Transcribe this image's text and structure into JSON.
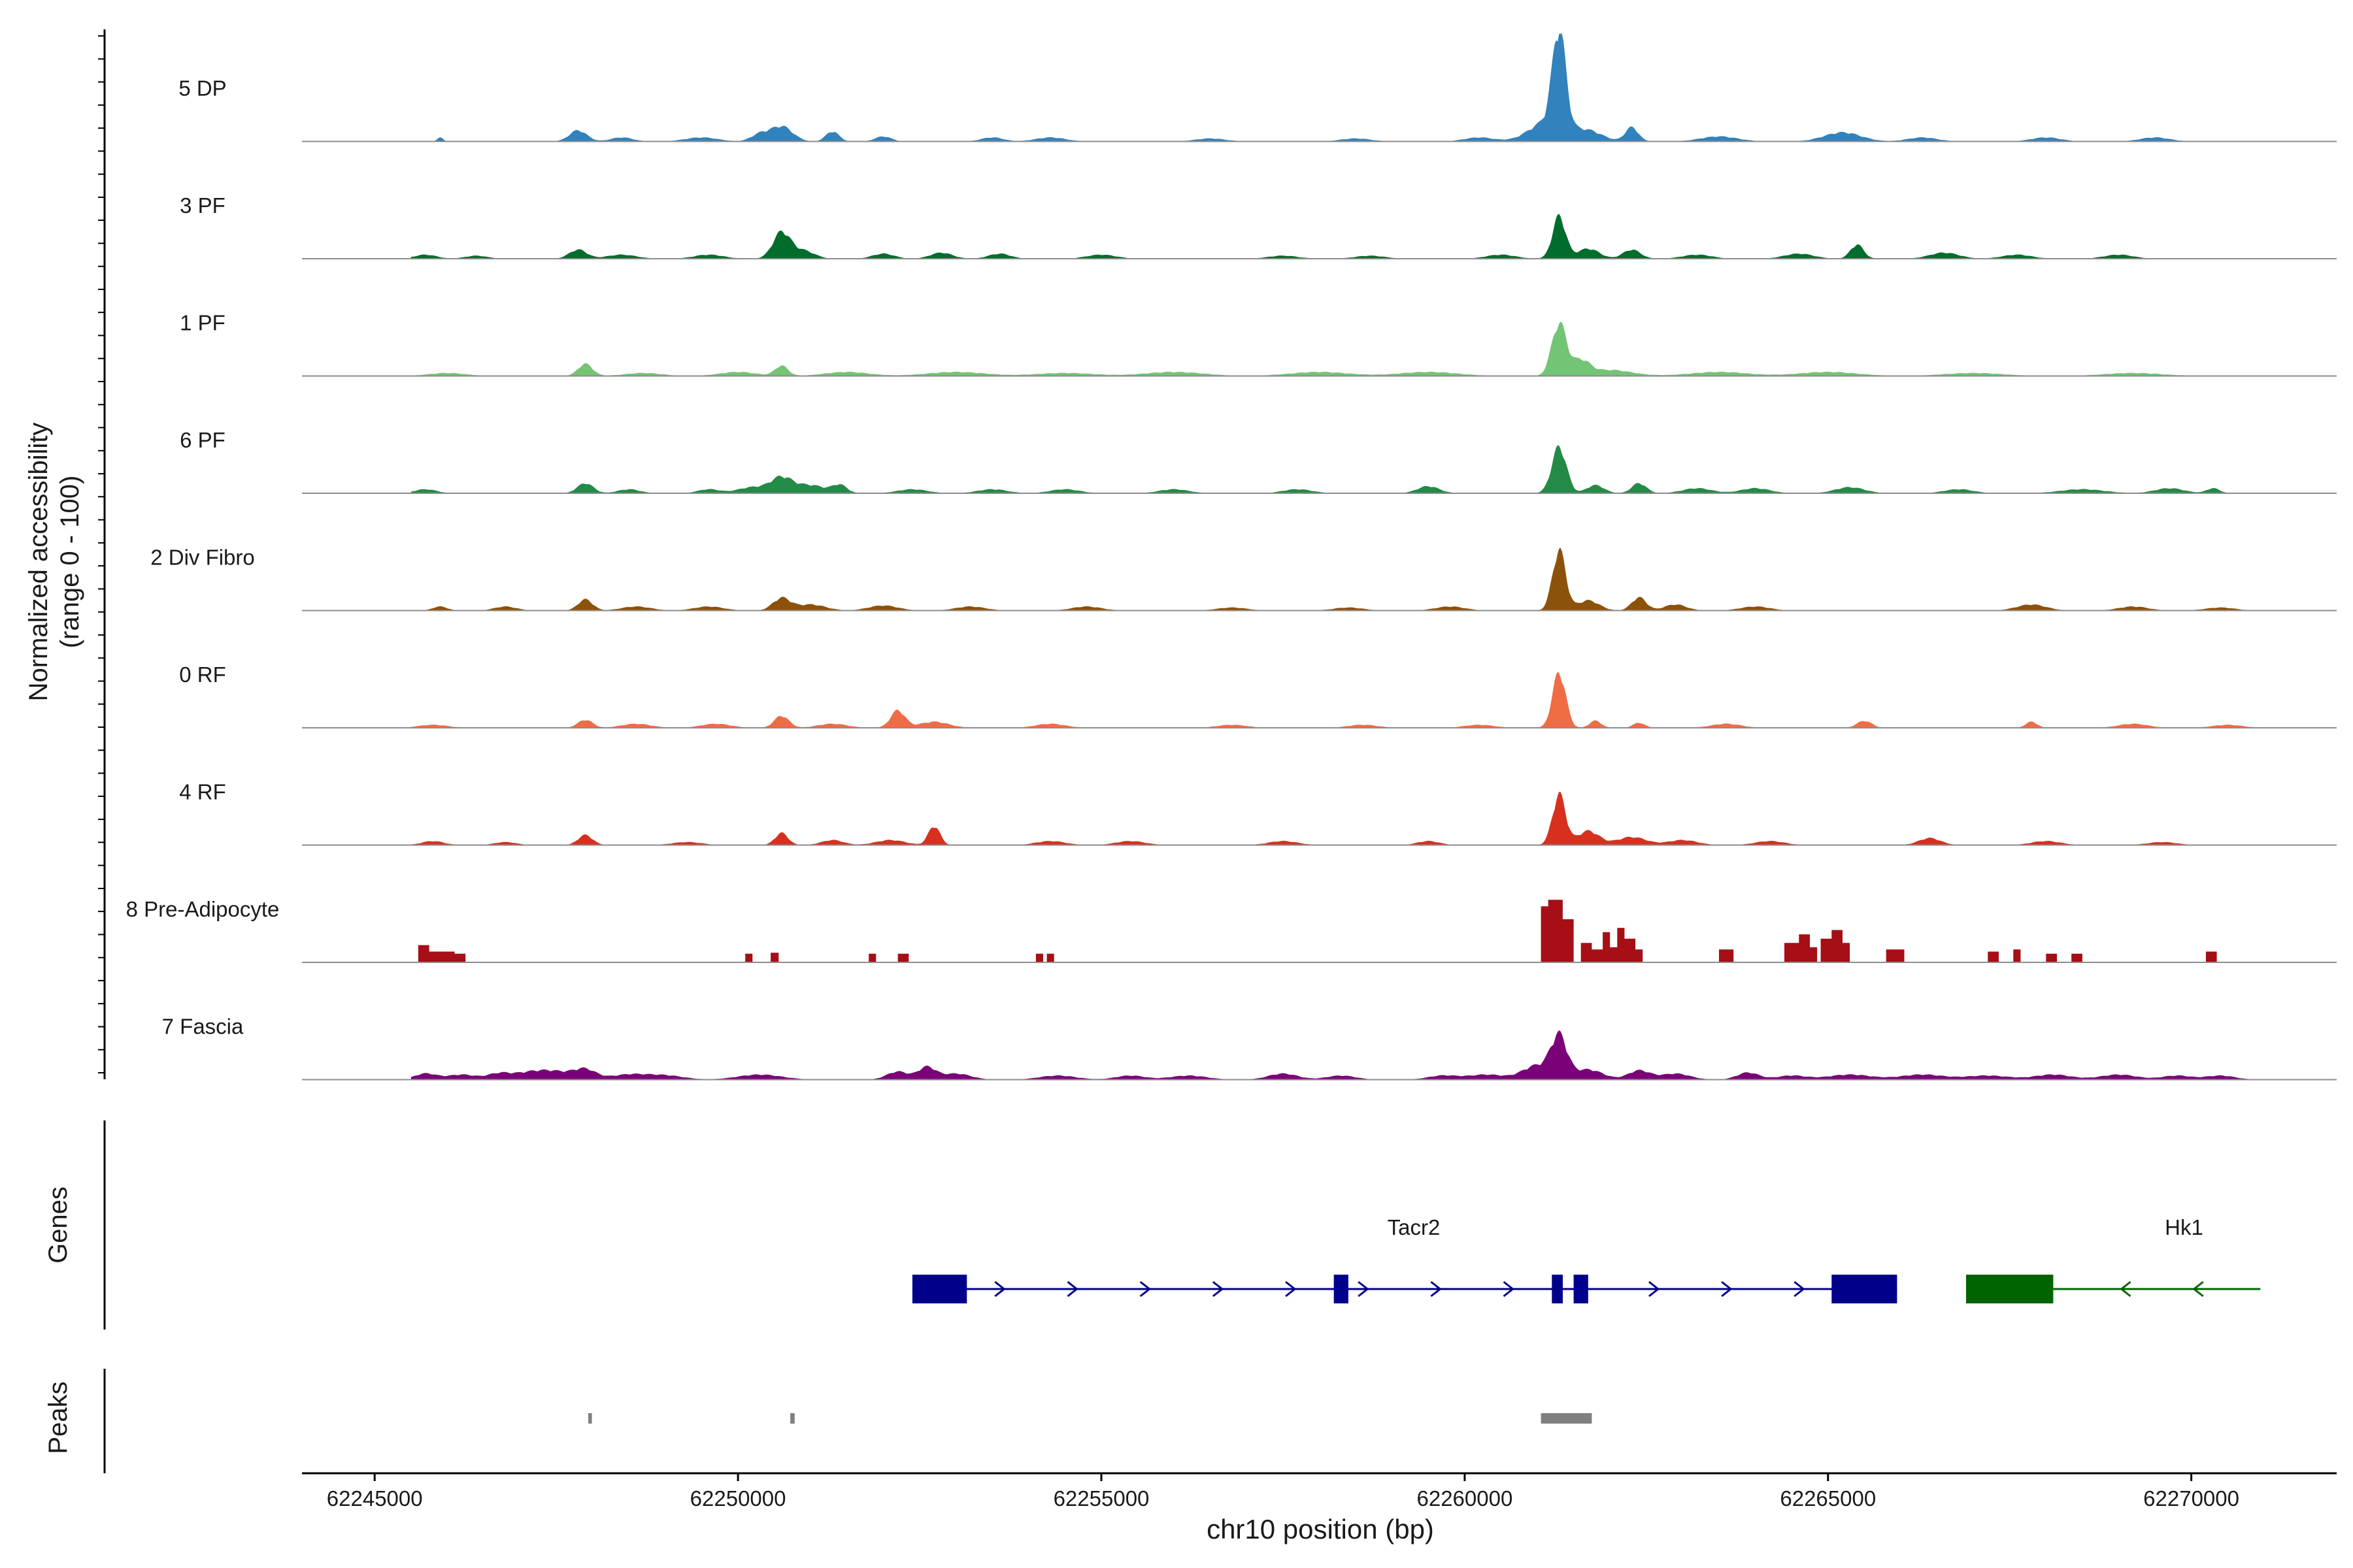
{
  "chart_data": {
    "type": "area",
    "xlabel": "chr10 position (bp)",
    "ylabel_line1": "Normalized accessibility",
    "ylabel_line2": "(range 0 - 100)",
    "xlim": [
      62244000,
      62272000
    ],
    "x_ticks": [
      62245000,
      62250000,
      62255000,
      62260000,
      62265000,
      62270000
    ],
    "x_tick_labels": [
      "62245000",
      "62250000",
      "62255000",
      "62260000",
      "62265000",
      "62270000"
    ],
    "ylim": [
      0,
      100
    ],
    "grid": false,
    "series": [
      {
        "name": "5 DP",
        "color": "#3182bd",
        "peaks": [
          [
            62245900,
            40,
            4
          ],
          [
            62247800,
            120,
            11
          ],
          [
            62248400,
            150,
            4
          ],
          [
            62249500,
            220,
            4
          ],
          [
            62250300,
            120,
            7
          ],
          [
            62250600,
            150,
            15
          ],
          [
            62251300,
            90,
            10
          ],
          [
            62252000,
            110,
            5
          ],
          [
            62253500,
            150,
            4
          ],
          [
            62254300,
            200,
            4
          ],
          [
            62256500,
            200,
            3
          ],
          [
            62258500,
            200,
            3
          ],
          [
            62260200,
            200,
            4
          ],
          [
            62261300,
            90,
            96
          ],
          [
            62261150,
            250,
            20
          ],
          [
            62261700,
            200,
            10
          ],
          [
            62262300,
            90,
            14
          ],
          [
            62263500,
            250,
            5
          ],
          [
            62265200,
            250,
            9
          ],
          [
            62266300,
            200,
            4
          ],
          [
            62268000,
            200,
            4
          ],
          [
            62269500,
            200,
            4
          ]
        ]
      },
      {
        "name": "3 PF",
        "color": "#006d2c",
        "peaks": [
          [
            62245700,
            150,
            4
          ],
          [
            62246400,
            150,
            3
          ],
          [
            62247800,
            120,
            9
          ],
          [
            62248400,
            200,
            4
          ],
          [
            62249600,
            200,
            4
          ],
          [
            62250600,
            120,
            26
          ],
          [
            62250900,
            150,
            8
          ],
          [
            62252000,
            150,
            5
          ],
          [
            62252800,
            150,
            6
          ],
          [
            62253600,
            150,
            5
          ],
          [
            62255000,
            200,
            4
          ],
          [
            62257500,
            200,
            3
          ],
          [
            62258700,
            200,
            3
          ],
          [
            62260500,
            200,
            4
          ],
          [
            62261300,
            90,
            42
          ],
          [
            62261700,
            150,
            10
          ],
          [
            62262300,
            120,
            9
          ],
          [
            62263200,
            200,
            4
          ],
          [
            62264600,
            200,
            5
          ],
          [
            62265400,
            90,
            14
          ],
          [
            62266600,
            200,
            6
          ],
          [
            62267600,
            200,
            4
          ],
          [
            62269000,
            200,
            4
          ]
        ]
      },
      {
        "name": "1 PF",
        "color": "#74c476",
        "peaks": [
          [
            62246000,
            250,
            3
          ],
          [
            62247900,
            100,
            12
          ],
          [
            62248700,
            250,
            3
          ],
          [
            62250000,
            250,
            4
          ],
          [
            62250600,
            90,
            10
          ],
          [
            62251500,
            300,
            4
          ],
          [
            62253000,
            400,
            4
          ],
          [
            62254500,
            400,
            3
          ],
          [
            62256000,
            400,
            4
          ],
          [
            62258000,
            400,
            4
          ],
          [
            62259500,
            400,
            4
          ],
          [
            62261300,
            100,
            52
          ],
          [
            62261600,
            120,
            14
          ],
          [
            62262000,
            300,
            6
          ],
          [
            62263500,
            400,
            4
          ],
          [
            62265000,
            400,
            4
          ],
          [
            62267000,
            400,
            3
          ],
          [
            62269200,
            400,
            3
          ]
        ]
      },
      {
        "name": "6 PF",
        "color": "#238b45",
        "peaks": [
          [
            62245700,
            150,
            4
          ],
          [
            62247900,
            110,
            10
          ],
          [
            62248500,
            150,
            4
          ],
          [
            62249600,
            150,
            4
          ],
          [
            62250200,
            200,
            6
          ],
          [
            62250600,
            150,
            15
          ],
          [
            62251000,
            200,
            8
          ],
          [
            62251400,
            100,
            8
          ],
          [
            62252400,
            200,
            4
          ],
          [
            62253500,
            200,
            4
          ],
          [
            62254500,
            200,
            4
          ],
          [
            62256000,
            200,
            4
          ],
          [
            62257700,
            200,
            4
          ],
          [
            62259500,
            150,
            7
          ],
          [
            62261300,
            100,
            46
          ],
          [
            62261800,
            120,
            8
          ],
          [
            62262400,
            100,
            10
          ],
          [
            62263200,
            200,
            5
          ],
          [
            62264000,
            200,
            5
          ],
          [
            62265300,
            200,
            6
          ],
          [
            62266800,
            200,
            4
          ],
          [
            62268500,
            300,
            4
          ],
          [
            62269700,
            200,
            5
          ],
          [
            62270300,
            90,
            5
          ]
        ]
      },
      {
        "name": "2 Div Fibro",
        "color": "#8c510a",
        "peaks": [
          [
            62245900,
            100,
            4
          ],
          [
            62246800,
            150,
            4
          ],
          [
            62247900,
            100,
            11
          ],
          [
            62248600,
            200,
            4
          ],
          [
            62249600,
            200,
            4
          ],
          [
            62250600,
            120,
            12
          ],
          [
            62251000,
            200,
            6
          ],
          [
            62252000,
            200,
            5
          ],
          [
            62253200,
            200,
            4
          ],
          [
            62254800,
            200,
            4
          ],
          [
            62256800,
            200,
            3
          ],
          [
            62258400,
            200,
            3
          ],
          [
            62259800,
            200,
            4
          ],
          [
            62261300,
            90,
            60
          ],
          [
            62261700,
            150,
            10
          ],
          [
            62262400,
            100,
            13
          ],
          [
            62262900,
            150,
            6
          ],
          [
            62264000,
            200,
            4
          ],
          [
            62267800,
            200,
            6
          ],
          [
            62269200,
            200,
            4
          ],
          [
            62270400,
            200,
            3
          ]
        ]
      },
      {
        "name": "0 RF",
        "color": "#ef6c45",
        "peaks": [
          [
            62245800,
            200,
            3
          ],
          [
            62247900,
            100,
            8
          ],
          [
            62248600,
            200,
            4
          ],
          [
            62249700,
            200,
            4
          ],
          [
            62250600,
            100,
            12
          ],
          [
            62251300,
            200,
            4
          ],
          [
            62252200,
            100,
            17
          ],
          [
            62252700,
            200,
            6
          ],
          [
            62254300,
            200,
            4
          ],
          [
            62256800,
            200,
            3
          ],
          [
            62258600,
            200,
            3
          ],
          [
            62260200,
            200,
            3
          ],
          [
            62261300,
            90,
            55
          ],
          [
            62261800,
            80,
            7
          ],
          [
            62262400,
            80,
            5
          ],
          [
            62263600,
            200,
            4
          ],
          [
            62265500,
            100,
            7
          ],
          [
            62267800,
            80,
            6
          ],
          [
            62269200,
            200,
            4
          ],
          [
            62270500,
            200,
            3
          ]
        ]
      },
      {
        "name": "4 RF",
        "color": "#d7301f",
        "peaks": [
          [
            62245800,
            150,
            4
          ],
          [
            62246800,
            150,
            3
          ],
          [
            62247900,
            100,
            10
          ],
          [
            62249300,
            200,
            3
          ],
          [
            62250600,
            90,
            12
          ],
          [
            62251300,
            150,
            5
          ],
          [
            62252100,
            200,
            5
          ],
          [
            62252700,
            80,
            19
          ],
          [
            62254300,
            200,
            4
          ],
          [
            62255400,
            200,
            4
          ],
          [
            62257500,
            200,
            4
          ],
          [
            62259500,
            150,
            4
          ],
          [
            62261300,
            90,
            50
          ],
          [
            62261700,
            150,
            14
          ],
          [
            62262300,
            200,
            8
          ],
          [
            62263000,
            200,
            5
          ],
          [
            62264200,
            200,
            4
          ],
          [
            62266400,
            150,
            7
          ],
          [
            62268000,
            200,
            4
          ],
          [
            62269600,
            200,
            3
          ]
        ]
      },
      {
        "name": "8 Pre-Adipocyte",
        "color": "#a50f15",
        "blocks": [
          [
            62245600,
            62245750,
            16
          ],
          [
            62245750,
            62246100,
            10
          ],
          [
            62246100,
            62246250,
            8
          ],
          [
            62250100,
            62250200,
            8
          ],
          [
            62250450,
            62250560,
            9
          ],
          [
            62251800,
            62251900,
            8
          ],
          [
            62252200,
            62252350,
            8
          ],
          [
            62254100,
            62254200,
            8
          ],
          [
            62254250,
            62254350,
            8
          ],
          [
            62261050,
            62261150,
            52
          ],
          [
            62261150,
            62261350,
            58
          ],
          [
            62261350,
            62261500,
            40
          ],
          [
            62261600,
            62261750,
            18
          ],
          [
            62261750,
            62261900,
            12
          ],
          [
            62261900,
            62262000,
            28
          ],
          [
            62262000,
            62262100,
            14
          ],
          [
            62262100,
            62262200,
            32
          ],
          [
            62262200,
            62262350,
            22
          ],
          [
            62262350,
            62262450,
            12
          ],
          [
            62263500,
            62263700,
            12
          ],
          [
            62264400,
            62264600,
            18
          ],
          [
            62264600,
            62264750,
            26
          ],
          [
            62264750,
            62264850,
            14
          ],
          [
            62264900,
            62265050,
            22
          ],
          [
            62265050,
            62265200,
            30
          ],
          [
            62265200,
            62265300,
            18
          ],
          [
            62265800,
            62266050,
            12
          ],
          [
            62267200,
            62267350,
            10
          ],
          [
            62267550,
            62267650,
            12
          ],
          [
            62268000,
            62268150,
            8
          ],
          [
            62268350,
            62268500,
            8
          ],
          [
            62270200,
            62270350,
            10
          ]
        ]
      },
      {
        "name": "7 Fascia",
        "color": "#7a0177",
        "peaks": [
          [
            62245700,
            150,
            6
          ],
          [
            62246200,
            200,
            5
          ],
          [
            62246700,
            150,
            5
          ],
          [
            62247100,
            250,
            6
          ],
          [
            62247500,
            250,
            7
          ],
          [
            62247900,
            150,
            9
          ],
          [
            62248500,
            250,
            5
          ],
          [
            62249000,
            250,
            4
          ],
          [
            62250300,
            300,
            5
          ],
          [
            62252200,
            150,
            8
          ],
          [
            62252600,
            120,
            12
          ],
          [
            62253000,
            200,
            6
          ],
          [
            62254400,
            250,
            4
          ],
          [
            62255400,
            200,
            4
          ],
          [
            62256200,
            250,
            4
          ],
          [
            62257500,
            200,
            6
          ],
          [
            62258300,
            200,
            4
          ],
          [
            62259700,
            200,
            4
          ],
          [
            62260300,
            250,
            5
          ],
          [
            62261300,
            110,
            40
          ],
          [
            62261000,
            200,
            14
          ],
          [
            62261700,
            200,
            10
          ],
          [
            62262400,
            150,
            9
          ],
          [
            62262900,
            200,
            6
          ],
          [
            62263900,
            150,
            7
          ],
          [
            62264500,
            200,
            4
          ],
          [
            62265300,
            300,
            5
          ],
          [
            62266300,
            300,
            5
          ],
          [
            62267200,
            300,
            4
          ],
          [
            62268100,
            250,
            5
          ],
          [
            62269000,
            250,
            5
          ],
          [
            62269800,
            200,
            4
          ],
          [
            62270400,
            200,
            4
          ]
        ]
      }
    ],
    "genes_label": "Genes",
    "genes": [
      {
        "name": "Tacr2",
        "strand": "+",
        "color": "#00008b",
        "start": 62252400,
        "end": 62265950,
        "exons": [
          [
            62252400,
            62253150
          ],
          [
            62258200,
            62258400
          ],
          [
            62261200,
            62261350
          ],
          [
            62261500,
            62261700
          ],
          [
            62265050,
            62265950
          ]
        ],
        "label_x": 62259300
      },
      {
        "name": "Hk1",
        "strand": "-",
        "color": "#006400",
        "start": 62266900,
        "end": 62270950,
        "exons": [
          [
            62266900,
            62268100
          ]
        ],
        "label_x": 62269900
      }
    ],
    "peaks_label": "Peaks",
    "peak_regions": [
      [
        62247940,
        62247990
      ],
      [
        62250720,
        62250780
      ],
      [
        62261050,
        62261750
      ]
    ],
    "peak_color": "#808080"
  }
}
